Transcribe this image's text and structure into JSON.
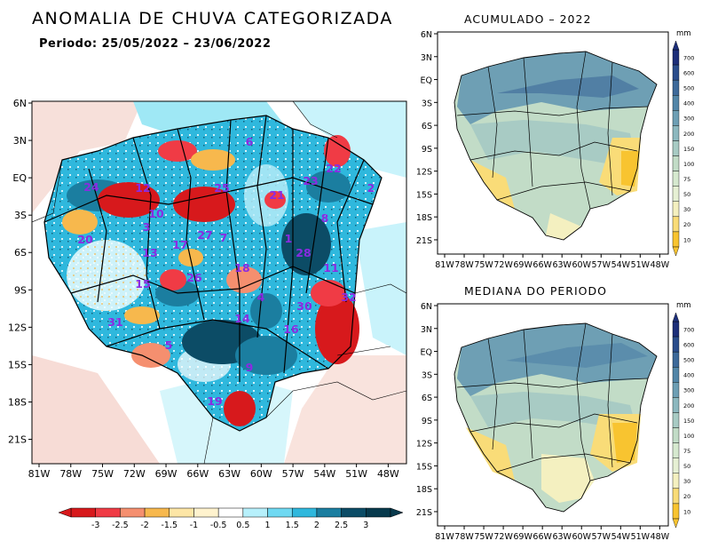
{
  "main": {
    "title": "ANOMALIA DE CHUVA CATEGORIZADA",
    "period": "Periodo: 25/05/2022 – 23/06/2022",
    "lat_labels": [
      "6N",
      "3N",
      "EQ",
      "3S",
      "6S",
      "9S",
      "12S",
      "15S",
      "18S",
      "21S"
    ],
    "lon_labels": [
      "81W",
      "78W",
      "75W",
      "72W",
      "69W",
      "66W",
      "63W",
      "60W",
      "57W",
      "54W",
      "51W",
      "48W"
    ],
    "basin_numbers": [
      "6",
      "22",
      "12",
      "25",
      "21",
      "23",
      "2",
      "24",
      "10",
      "3",
      "7",
      "8",
      "20",
      "13",
      "17",
      "27",
      "1",
      "28",
      "11",
      "15",
      "26",
      "18",
      "4",
      "32",
      "30",
      "31",
      "14",
      "16",
      "5",
      "9",
      "19"
    ],
    "colorbar_labels": [
      "-3",
      "-2.5",
      "-2",
      "-1.5",
      "-1",
      "-0.5",
      "0.5",
      "1",
      "1.5",
      "2",
      "2.5",
      "3"
    ],
    "colorbar_colors": [
      "#d7191c",
      "#f03b45",
      "#f58f6f",
      "#f7b84d",
      "#fde6a6",
      "#fff3ce",
      "#ffffff",
      "#b7f0fb",
      "#6fd9f2",
      "#2fb8dd",
      "#1b7ea0",
      "#0c4c66",
      "#083a4d"
    ]
  },
  "accum": {
    "subtitle": "ACUMULADO – 2022",
    "lat_labels": [
      "6N",
      "3N",
      "EQ",
      "3S",
      "6S",
      "9S",
      "12S",
      "15S",
      "18S",
      "21S"
    ],
    "lon_labels": [
      "81W",
      "78W",
      "75W",
      "72W",
      "69W",
      "66W",
      "63W",
      "60W",
      "57W",
      "54W",
      "51W",
      "48W"
    ]
  },
  "median": {
    "subtitle": "MEDIANA DO PERIODO",
    "lat_labels": [
      "6N",
      "3N",
      "EQ",
      "3S",
      "6S",
      "9S",
      "12S",
      "15S",
      "18S",
      "21S"
    ],
    "lon_labels": [
      "81W",
      "78W",
      "75W",
      "72W",
      "69W",
      "66W",
      "63W",
      "60W",
      "57W",
      "54W",
      "51W",
      "48W"
    ]
  },
  "mm_colorbar": {
    "unit": "mm",
    "labels": [
      "700",
      "600",
      "500",
      "400",
      "300",
      "200",
      "150",
      "100",
      "75",
      "50",
      "30",
      "20",
      "10"
    ],
    "colors": [
      "#1d2f7a",
      "#2a4d8c",
      "#3d6a9a",
      "#5286a8",
      "#6e9fb4",
      "#8db8bf",
      "#a8cbc4",
      "#c2dcc7",
      "#d6e9cf",
      "#e6f0d4",
      "#f4f0c0",
      "#f9dc78",
      "#f8c430"
    ]
  }
}
